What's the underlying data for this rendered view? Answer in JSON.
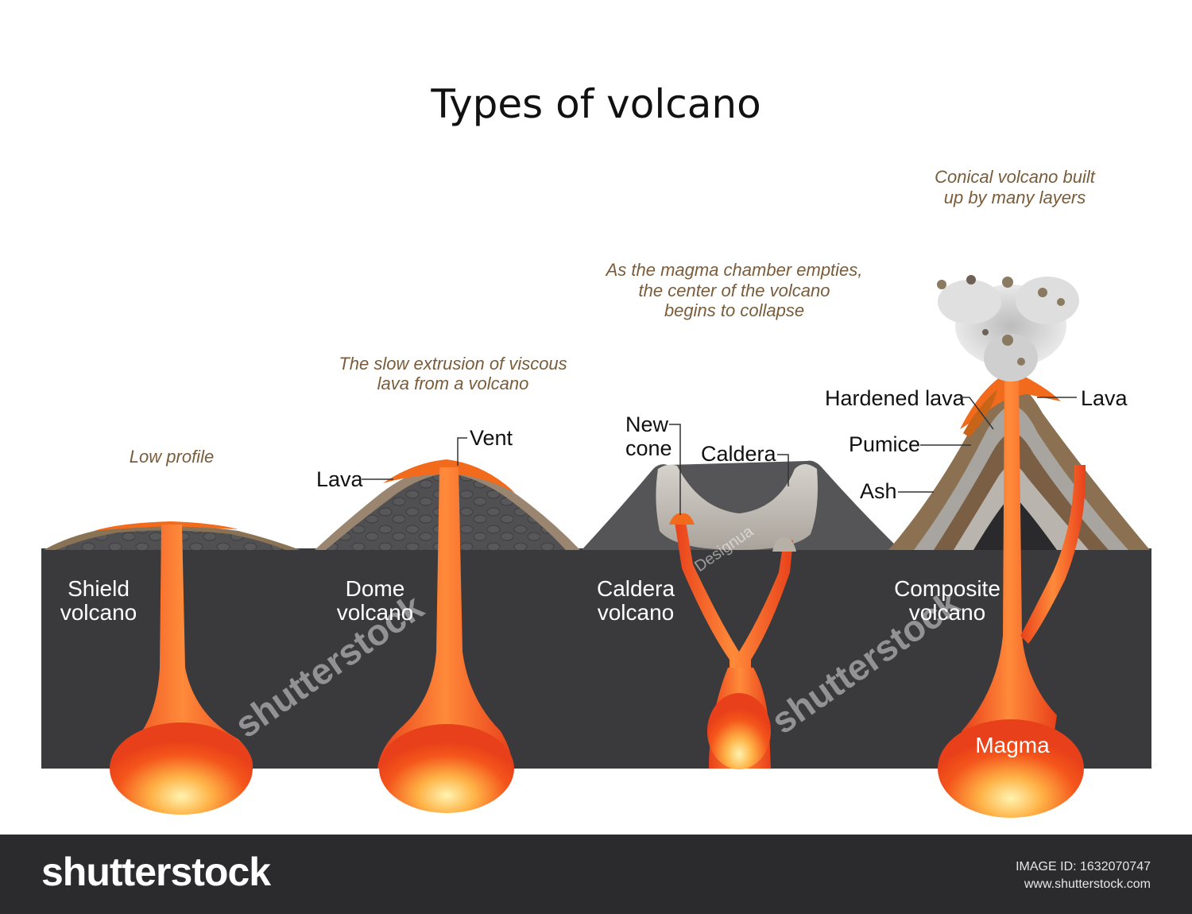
{
  "title": "Types of volcano",
  "notes": {
    "shield": "Low profile",
    "dome_1": "The slow extrusion of viscous",
    "dome_2": "lava from a volcano",
    "caldera_1": "As the magma chamber empties,",
    "caldera_2": "the center of the volcano",
    "caldera_3": "begins to collapse",
    "composite_1": "Conical volcano built",
    "composite_2": "up by many layers"
  },
  "labels": {
    "lava_dome": "Lava",
    "vent": "Vent",
    "new_cone_1": "New",
    "new_cone_2": "cone",
    "caldera": "Caldera",
    "hardened_lava": "Hardened lava",
    "lava_composite": "Lava",
    "pumice": "Pumice",
    "ash": "Ash",
    "magma": "Magma"
  },
  "volcano_names": {
    "shield_1": "Shield",
    "shield_2": "volcano",
    "dome_1": "Dome",
    "dome_2": "volcano",
    "caldera_1": "Caldera",
    "caldera_2": "volcano",
    "composite_1": "Composite",
    "composite_2": "volcano"
  },
  "watermark": {
    "brand": "shutterstock",
    "author": "Designua"
  },
  "footer": {
    "brand": "shutterstock",
    "image_id": "IMAGE ID: 1632070747",
    "url": "www.shutterstock.com"
  },
  "colors": {
    "ground": "#3a3a3c",
    "lava": "#f26a1b",
    "lava_core": "#ffd35c",
    "rock": "#4a4a4a",
    "note_text": "#7a5c3a"
  }
}
